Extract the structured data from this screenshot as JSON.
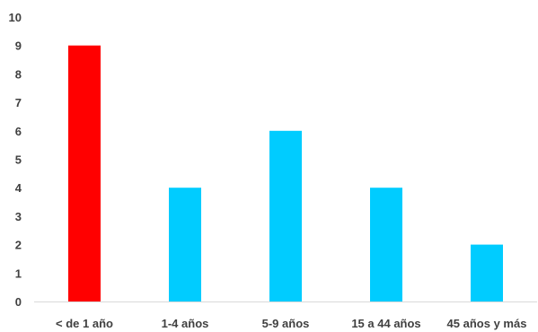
{
  "chart_data": {
    "type": "bar",
    "categories": [
      "< de 1 año",
      "1-4 años",
      "5-9 años",
      "15 a 44 años",
      "45 años y más"
    ],
    "values": [
      9,
      4,
      6,
      4,
      2
    ],
    "colors": [
      "#ff0000",
      "#00ccff",
      "#00ccff",
      "#00ccff",
      "#00ccff"
    ],
    "y_ticks": [
      0,
      1,
      2,
      3,
      4,
      5,
      6,
      7,
      8,
      9,
      10
    ],
    "ylim": [
      0,
      10
    ],
    "grid": false,
    "axis_color": "#d9d9d9"
  }
}
